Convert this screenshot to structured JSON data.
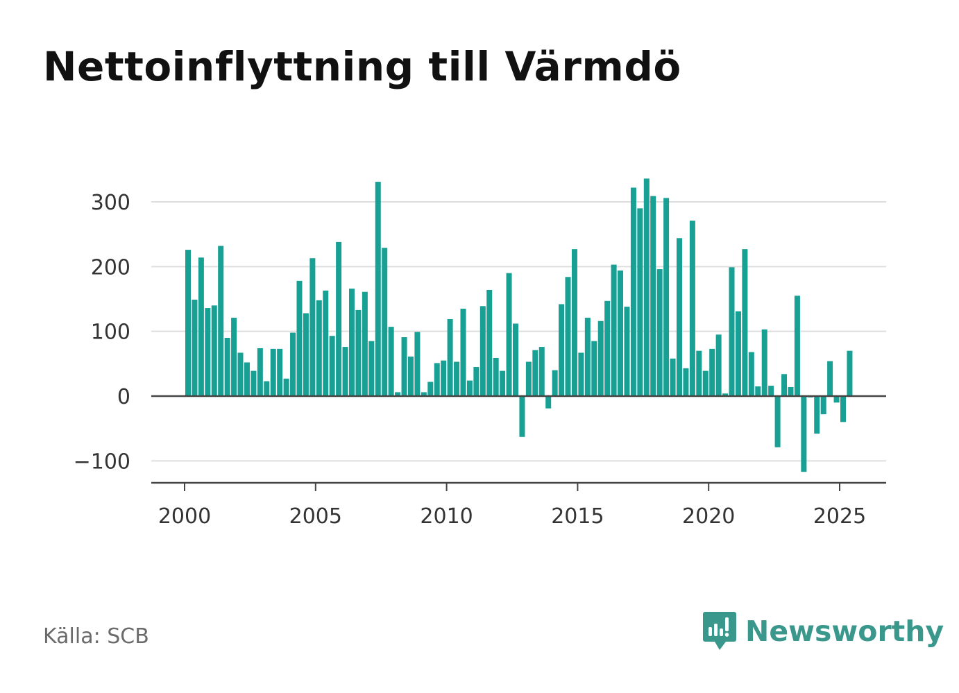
{
  "chart_data": {
    "type": "bar",
    "title": "Nettoinflyttning till Värmdö",
    "xlabel": "",
    "ylabel": "",
    "x_ticks": [
      "2000",
      "2005",
      "2010",
      "2015",
      "2020",
      "2025"
    ],
    "y_ticks": [
      300,
      200,
      100,
      0,
      -100
    ],
    "y_tick_labels": [
      "300",
      "200",
      "100",
      "0",
      "−100"
    ],
    "ylim": [
      -130,
      345
    ],
    "xlim": [
      1998.7,
      2026.8
    ],
    "grid": true,
    "bar_color": "#17a093",
    "series": [
      {
        "x": [
          2000.0,
          2000.25,
          2000.5,
          2000.75,
          2001.0,
          2001.25,
          2001.5,
          2001.75,
          2002.0,
          2002.25,
          2002.5,
          2002.75,
          2003.0,
          2003.25,
          2003.5,
          2003.75,
          2004.0,
          2004.25,
          2004.5,
          2004.75,
          2005.0,
          2005.25,
          2005.5,
          2005.75,
          2006.0,
          2006.25,
          2006.5,
          2006.75,
          2007.0,
          2007.25,
          2007.5,
          2007.75,
          2008.0,
          2008.25,
          2008.5,
          2008.75,
          2009.0,
          2009.25,
          2009.5,
          2009.75,
          2010.0,
          2010.25,
          2010.5,
          2010.75,
          2011.0,
          2011.25,
          2011.5,
          2011.75,
          2012.0,
          2012.25,
          2012.5,
          2012.75,
          2013.0,
          2013.25,
          2013.5,
          2013.75,
          2014.0,
          2014.25,
          2014.5,
          2014.75,
          2015.0,
          2015.25,
          2015.5,
          2015.75,
          2016.0,
          2016.25,
          2016.5,
          2016.75,
          2017.0,
          2017.25,
          2017.5,
          2017.75,
          2018.0,
          2018.25,
          2018.5,
          2018.75,
          2019.0,
          2019.25,
          2019.5,
          2019.75,
          2020.0,
          2020.25,
          2020.5,
          2020.75,
          2021.0,
          2021.25,
          2021.5,
          2021.75,
          2022.0,
          2022.25,
          2022.5,
          2022.75,
          2023.0,
          2023.25,
          2023.5,
          2023.75,
          2024.0,
          2024.25,
          2024.5,
          2024.75,
          2025.0,
          2025.25
        ],
        "values": [
          226,
          149,
          214,
          136,
          140,
          232,
          90,
          121,
          67,
          52,
          39,
          74,
          23,
          73,
          73,
          27,
          98,
          178,
          128,
          213,
          148,
          163,
          93,
          238,
          76,
          166,
          133,
          161,
          85,
          331,
          229,
          107,
          6,
          91,
          61,
          99,
          6,
          22,
          51,
          55,
          119,
          53,
          135,
          24,
          45,
          139,
          164,
          59,
          39,
          190,
          112,
          -63,
          53,
          71,
          76,
          -19,
          40,
          142,
          184,
          227,
          67,
          121,
          85,
          116,
          147,
          203,
          194,
          138,
          322,
          290,
          336,
          309,
          196,
          306,
          58,
          244,
          43,
          271,
          70,
          39,
          73,
          95,
          4,
          199,
          131,
          227,
          68,
          15,
          103,
          16,
          -79,
          34,
          14,
          155,
          -117,
          -2,
          -58,
          -28,
          54,
          -10,
          -40,
          70
        ]
      }
    ],
    "source": "Källa: SCB",
    "brand": "Newsworthy",
    "brand_color": "#3a978c"
  }
}
